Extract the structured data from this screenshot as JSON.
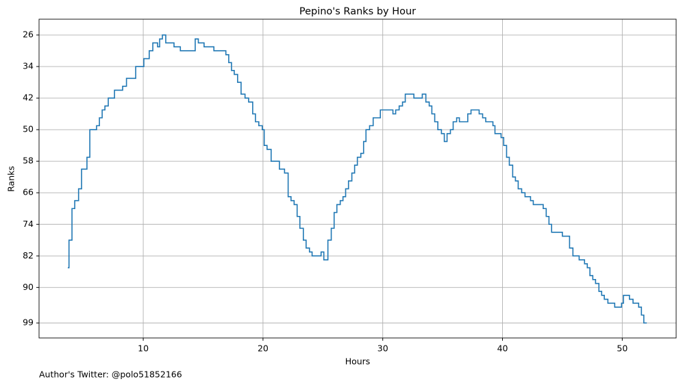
{
  "chart_data": {
    "type": "step",
    "title": "Pepino's Ranks by Hour",
    "xlabel": "Hours",
    "ylabel": "Ranks",
    "footer": "Author's Twitter: @polo51852166",
    "series": [
      {
        "color": "#1f77b4",
        "x": [
          3.7,
          3.8,
          4.05,
          4.28,
          4.6,
          4.85,
          5.3,
          5.54,
          6.1,
          6.34,
          6.57,
          6.8,
          7.08,
          7.6,
          8.28,
          8.6,
          9.37,
          10.05,
          10.5,
          10.8,
          11.2,
          11.37,
          11.6,
          11.88,
          12.57,
          13.1,
          14.34,
          14.6,
          15.08,
          15.9,
          16.9,
          17.14,
          17.37,
          17.6,
          17.88,
          18.17,
          18.5,
          18.8,
          19.14,
          19.37,
          19.65,
          19.94,
          20.1,
          20.34,
          20.68,
          21.37,
          21.8,
          22.1,
          22.34,
          22.6,
          22.85,
          23.08,
          23.37,
          23.6,
          23.88,
          24.1,
          24.85,
          25.08,
          25.42,
          25.7,
          25.94,
          26.17,
          26.45,
          26.68,
          26.9,
          27.14,
          27.42,
          27.65,
          27.88,
          28.17,
          28.4,
          28.6,
          28.9,
          29.2,
          29.8,
          30.85,
          31.08,
          31.37,
          31.65,
          31.88,
          32.6,
          33.3,
          33.6,
          33.88,
          34.1,
          34.34,
          34.6,
          34.9,
          35.14,
          35.37,
          35.65,
          35.88,
          36.17,
          36.4,
          37.1,
          37.37,
          38.05,
          38.34,
          38.6,
          39.2,
          39.37,
          39.88,
          40.1,
          40.34,
          40.57,
          40.85,
          41.08,
          41.31,
          41.6,
          41.88,
          42.34,
          42.57,
          43.4,
          43.65,
          43.88,
          44.1,
          45.0,
          45.6,
          45.88,
          46.4,
          46.85,
          47.08,
          47.3,
          47.54,
          47.77,
          48.05,
          48.28,
          48.5,
          48.8,
          49.37,
          49.94,
          50.1,
          50.6,
          50.9,
          51.37,
          51.6,
          51.8,
          52.05
        ],
        "values": [
          85,
          78,
          70,
          68,
          65,
          60,
          57,
          50,
          49,
          47,
          45,
          44,
          42,
          40,
          39,
          37,
          34,
          32,
          30,
          28,
          29,
          27,
          26,
          28,
          29,
          30,
          27,
          28,
          29,
          30,
          31,
          33,
          35,
          36,
          38,
          41,
          42,
          43,
          46,
          48,
          49,
          50,
          54,
          55,
          58,
          60,
          61,
          67,
          68,
          69,
          72,
          75,
          78,
          80,
          81,
          82,
          81,
          83,
          78,
          75,
          71,
          69,
          68,
          67,
          65,
          63,
          61,
          59,
          57,
          56,
          53,
          50,
          49,
          47,
          45,
          46,
          45,
          44,
          43,
          41,
          42,
          41,
          43,
          44,
          46,
          48,
          50,
          51,
          53,
          51,
          50,
          48,
          47,
          48,
          46,
          45,
          46,
          47,
          48,
          49,
          51,
          52,
          54,
          57,
          59,
          62,
          63,
          65,
          66,
          67,
          68,
          69,
          70,
          72,
          74,
          76,
          77,
          80,
          82,
          83,
          84,
          85,
          87,
          88,
          89,
          91,
          92,
          93,
          94,
          95,
          94,
          92,
          93,
          94,
          95,
          97,
          99,
          99
        ]
      }
    ],
    "xlim": [
      1.3,
      54.5
    ],
    "ylim": [
      102.8,
      22
    ],
    "xticks": [
      10,
      20,
      30,
      40,
      50
    ],
    "yticks": [
      26,
      34,
      42,
      50,
      58,
      66,
      74,
      82,
      90,
      99
    ],
    "grid": true
  }
}
